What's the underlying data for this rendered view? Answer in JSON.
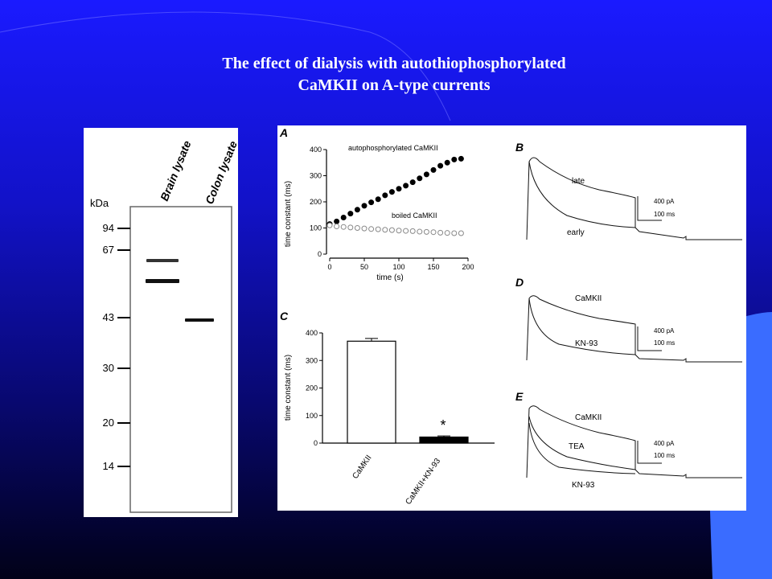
{
  "slide": {
    "title_line1": "The effect of dialysis with autothiophosphorylated",
    "title_line2": "CaMKII on A-type currents"
  },
  "colors": {
    "background_top": "#1a1aff",
    "background_bottom": "#010118",
    "accent_bar": "#3a6cff",
    "title": "#ffffff"
  },
  "gel": {
    "unit_label": "kDa",
    "lane_labels": [
      "Brain lysate",
      "Colon lysate"
    ],
    "markers": [
      "94",
      "67",
      "43",
      "30",
      "20",
      "14"
    ]
  },
  "figure": {
    "panel_labels": {
      "a": "A",
      "b": "B",
      "c": "C",
      "d": "D",
      "e": "E"
    },
    "panel_a": {
      "ylabel": "time constant (ms)",
      "xlabel": "time (s)",
      "series_labels": [
        "autophosphorylated CaMKII",
        "boiled CaMKII"
      ]
    },
    "panel_b": {
      "trace_labels": [
        "late",
        "early"
      ],
      "scale_current": "400 pA",
      "scale_time": "100 ms"
    },
    "panel_c": {
      "ylabel": "time constant (ms)",
      "significance": "*"
    },
    "panel_d": {
      "trace_labels": [
        "CaMKII",
        "KN-93"
      ],
      "scale_current": "400 pA",
      "scale_time": "100 ms"
    },
    "panel_e": {
      "trace_labels": [
        "CaMKII",
        "TEA",
        "KN-93"
      ],
      "scale_current": "400 pA",
      "scale_time": "100 ms"
    }
  },
  "chart_data": [
    {
      "type": "scatter",
      "panel": "A",
      "xlabel": "time (s)",
      "ylabel": "time constant (ms)",
      "xlim": [
        0,
        200
      ],
      "ylim": [
        0,
        400
      ],
      "xticks": [
        "0",
        "50",
        "100",
        "150",
        "200"
      ],
      "yticks": [
        "0",
        "100",
        "200",
        "300",
        "400"
      ],
      "series": [
        {
          "name": "autophosphorylated CaMKII",
          "marker": "filled",
          "x": [
            0,
            10,
            20,
            30,
            40,
            50,
            60,
            70,
            80,
            90,
            100,
            110,
            120,
            130,
            140,
            150,
            160,
            170,
            180,
            190
          ],
          "y": [
            115,
            125,
            140,
            155,
            170,
            185,
            198,
            210,
            225,
            238,
            250,
            262,
            275,
            290,
            305,
            322,
            338,
            350,
            362,
            365
          ]
        },
        {
          "name": "boiled CaMKII",
          "marker": "open",
          "x": [
            0,
            10,
            20,
            30,
            40,
            50,
            60,
            70,
            80,
            90,
            100,
            110,
            120,
            130,
            140,
            150,
            160,
            170,
            180,
            190
          ],
          "y": [
            110,
            106,
            104,
            102,
            100,
            98,
            96,
            95,
            93,
            92,
            90,
            89,
            88,
            86,
            85,
            84,
            82,
            81,
            80,
            80
          ]
        }
      ]
    },
    {
      "type": "bar",
      "panel": "C",
      "ylabel": "time constant (ms)",
      "ylim": [
        0,
        400
      ],
      "yticks": [
        "0",
        "100",
        "200",
        "300",
        "400"
      ],
      "categories": [
        "CaMKII",
        "CaMKII+KN-93"
      ],
      "values": [
        370,
        22
      ],
      "errors": [
        10,
        4
      ]
    }
  ]
}
